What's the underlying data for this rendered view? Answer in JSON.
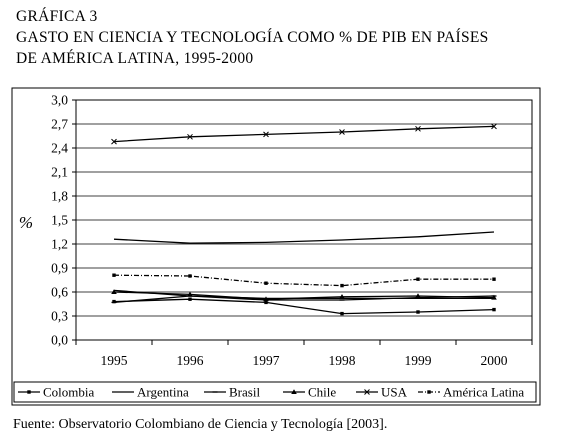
{
  "heading": {
    "label": "GRÁFICA 3",
    "title_line1": "GASTO EN CIENCIA Y TECNOLOGÍA COMO % DE PIB EN PAÍSES",
    "title_line2": "DE AMÉRICA LATINA, 1995-2000"
  },
  "source": "Fuente: Observatorio Colombiano de Ciencia y Tecnología [2003].",
  "chart_data": {
    "type": "line",
    "title": "GASTO EN CIENCIA Y TECNOLOGÍA COMO % DE PIB EN PAÍSES DE AMÉRICA LATINA, 1995-2000",
    "xlabel": "",
    "ylabel": "%",
    "x": [
      "1995",
      "1996",
      "1997",
      "1998",
      "1999",
      "2000"
    ],
    "ylim": [
      0,
      3.0
    ],
    "yticks": [
      "0,0",
      "0,3",
      "0,6",
      "0,9",
      "1,2",
      "1,5",
      "1,8",
      "2,1",
      "2,4",
      "2,7",
      "3,0"
    ],
    "grid": true,
    "legend_position": "bottom",
    "series": [
      {
        "name": "Colombia",
        "values": [
          0.48,
          0.51,
          0.47,
          0.33,
          0.35,
          0.38
        ],
        "color": "#000000",
        "dash": "",
        "marker": "square"
      },
      {
        "name": "Argentina",
        "values": [
          0.62,
          0.55,
          0.52,
          0.52,
          0.52,
          0.52
        ],
        "color": "#000000",
        "dash": "",
        "marker": "none"
      },
      {
        "name": "Brasil",
        "values": [
          0.47,
          0.55,
          0.5,
          0.5,
          0.53,
          0.55
        ],
        "color": "#000000",
        "dash": "",
        "marker": "dash"
      },
      {
        "name": "Chile",
        "values": [
          0.6,
          0.57,
          0.51,
          0.54,
          0.55,
          0.53
        ],
        "color": "#000000",
        "dash": "",
        "marker": "triangle"
      },
      {
        "name": "USA",
        "values": [
          2.48,
          2.54,
          2.57,
          2.6,
          2.64,
          2.67
        ],
        "color": "#000000",
        "dash": "",
        "marker": "x"
      },
      {
        "name": "América Latina",
        "values": [
          0.81,
          0.8,
          0.71,
          0.68,
          0.76,
          0.76
        ],
        "color": "#000000",
        "dash": "5,2,1,2",
        "marker": "square"
      },
      {
        "name": "",
        "values": [
          1.26,
          1.21,
          1.22,
          1.25,
          1.29,
          1.35
        ],
        "color": "#000000",
        "dash": "",
        "marker": "none"
      }
    ]
  }
}
